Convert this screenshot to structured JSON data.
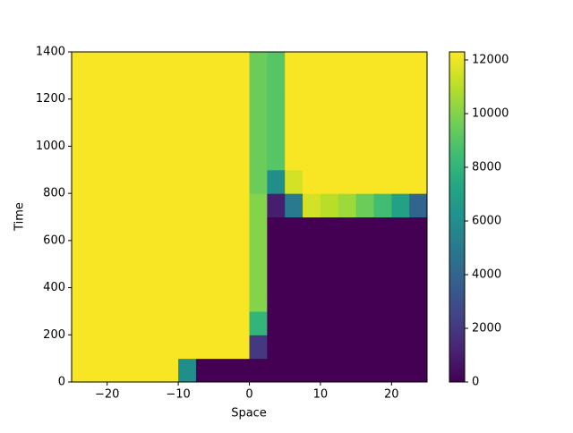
{
  "chart_data": {
    "type": "heatmap",
    "colormap": "viridis",
    "xlabel": "Space",
    "ylabel": "Time",
    "xlim": [
      -25,
      25
    ],
    "ylim": [
      0,
      1400
    ],
    "xticks": [
      {
        "value": -20,
        "label": "−20"
      },
      {
        "value": -10,
        "label": "−10"
      },
      0,
      10,
      20
    ],
    "yticks": [
      0,
      200,
      400,
      600,
      800,
      1000,
      1200,
      1400
    ],
    "x_bins": [
      -25,
      -22.5,
      -20,
      -17.5,
      -15,
      -12.5,
      -10,
      -7.5,
      -5,
      -2.5,
      0,
      2.5,
      5,
      7.5,
      10,
      12.5,
      15,
      17.5,
      20,
      22.5,
      25
    ],
    "y_bins": [
      0,
      100,
      200,
      300,
      400,
      500,
      600,
      700,
      800,
      900,
      1000,
      1100,
      1200,
      1300,
      1400
    ],
    "clim": [
      0,
      12300
    ],
    "cticks": [
      0,
      2000,
      4000,
      6000,
      8000,
      10000,
      12000
    ],
    "values": [
      [
        12200,
        12200,
        12200,
        12200,
        12200,
        12200,
        6000,
        0,
        0,
        0,
        0,
        0,
        0,
        0,
        0,
        0,
        0,
        0,
        0,
        0
      ],
      [
        12200,
        12200,
        12200,
        12200,
        12200,
        12200,
        12200,
        12200,
        12200,
        12200,
        2000,
        0,
        0,
        0,
        0,
        0,
        0,
        0,
        0,
        0
      ],
      [
        12200,
        12200,
        12200,
        12200,
        12200,
        12200,
        12200,
        12200,
        12200,
        12200,
        8000,
        0,
        0,
        0,
        0,
        0,
        0,
        0,
        0,
        0
      ],
      [
        12200,
        12200,
        12200,
        12200,
        12200,
        12200,
        12200,
        12200,
        12200,
        12200,
        10000,
        0,
        0,
        0,
        0,
        0,
        0,
        0,
        0,
        0
      ],
      [
        12200,
        12200,
        12200,
        12200,
        12200,
        12200,
        12200,
        12200,
        12200,
        12200,
        10000,
        0,
        0,
        0,
        0,
        0,
        0,
        0,
        0,
        0
      ],
      [
        12200,
        12200,
        12200,
        12200,
        12200,
        12200,
        12200,
        12200,
        12200,
        12200,
        10000,
        0,
        0,
        0,
        0,
        0,
        0,
        0,
        0,
        0
      ],
      [
        12200,
        12200,
        12200,
        12200,
        12200,
        12200,
        12200,
        12200,
        12200,
        12200,
        10000,
        0,
        0,
        0,
        0,
        0,
        0,
        0,
        0,
        0
      ],
      [
        12200,
        12200,
        12200,
        12200,
        12200,
        12200,
        12200,
        12200,
        12200,
        12200,
        10000,
        1000,
        5000,
        11500,
        11000,
        10500,
        9500,
        8500,
        7000,
        4000
      ],
      [
        12200,
        12200,
        12200,
        12200,
        12200,
        12200,
        12200,
        12200,
        12200,
        12200,
        9500,
        6000,
        11500,
        12200,
        12200,
        12200,
        12200,
        12200,
        12200,
        12200
      ],
      [
        12200,
        12200,
        12200,
        12200,
        12200,
        12200,
        12200,
        12200,
        12200,
        12200,
        9500,
        9000,
        12200,
        12200,
        12200,
        12200,
        12200,
        12200,
        12200,
        12200
      ],
      [
        12200,
        12200,
        12200,
        12200,
        12200,
        12200,
        12200,
        12200,
        12200,
        12200,
        9500,
        9000,
        12200,
        12200,
        12200,
        12200,
        12200,
        12200,
        12200,
        12200
      ],
      [
        12200,
        12200,
        12200,
        12200,
        12200,
        12200,
        12200,
        12200,
        12200,
        12200,
        9500,
        9000,
        12200,
        12200,
        12200,
        12200,
        12200,
        12200,
        12200,
        12200
      ],
      [
        12200,
        12200,
        12200,
        12200,
        12200,
        12200,
        12200,
        12200,
        12200,
        12200,
        9500,
        9000,
        12200,
        12200,
        12200,
        12200,
        12200,
        12200,
        12200,
        12200
      ],
      [
        12200,
        12200,
        12200,
        12200,
        12200,
        12200,
        12200,
        12200,
        12200,
        12200,
        9500,
        9000,
        12200,
        12200,
        12200,
        12200,
        12200,
        12200,
        12200,
        12200
      ]
    ]
  }
}
